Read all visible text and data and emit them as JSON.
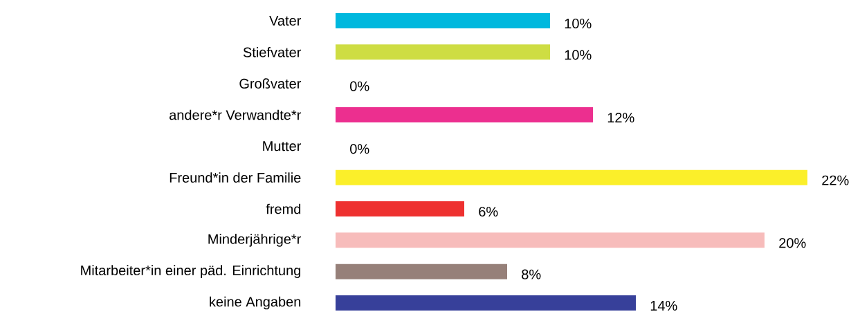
{
  "chart_data": {
    "type": "bar",
    "orientation": "horizontal",
    "categories": [
      "Vater",
      "Stiefvater",
      "Großvater",
      "andere*r Verwandte*r",
      "Mutter",
      "Freund*in der Familie",
      "fremd",
      "Minderjährige*r",
      "Mitarbeiter*in einer päd. Einrichtung",
      "keine Angaben"
    ],
    "values": [
      10,
      10,
      0,
      12,
      0,
      22,
      6,
      20,
      8,
      14
    ],
    "value_labels": [
      "10%",
      "10%",
      "0%",
      "12%",
      "0%",
      "22%",
      "6%",
      "20%",
      "8%",
      "14%"
    ],
    "colors": [
      "#00b8de",
      "#cedd43",
      "#9a9a9a",
      "#ec2f8f",
      "#9a9a9a",
      "#fbef2a",
      "#ee3130",
      "#f7bcbb",
      "#968079",
      "#37409a"
    ]
  }
}
